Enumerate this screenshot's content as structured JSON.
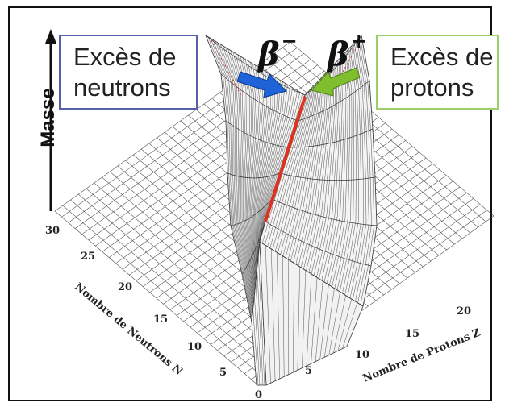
{
  "boxes": {
    "neutron_excess": [
      "Excès de",
      "neutrons"
    ],
    "proton_excess": [
      "Excès de",
      "protons"
    ]
  },
  "labels": {
    "mass_axis": "Masse",
    "beta_minus": "β",
    "beta_minus_sign": "−",
    "beta_plus": "β",
    "beta_plus_sign": "+"
  },
  "axes": {
    "neutron_title": "Nombre de Neutrons N",
    "proton_title": "Nombre de Protons Z",
    "neutron_ticks": [
      "0",
      "5",
      "10",
      "15",
      "20",
      "25",
      "30"
    ],
    "proton_ticks": [
      "5",
      "10",
      "15",
      "20"
    ]
  },
  "colors": {
    "stability_line": "#e0301e",
    "beta_minus_arrow": "#1f63d8",
    "beta_plus_arrow": "#7fbf2e",
    "box_neutron_border": "#5560a8",
    "box_proton_border": "#9bd06a"
  }
}
